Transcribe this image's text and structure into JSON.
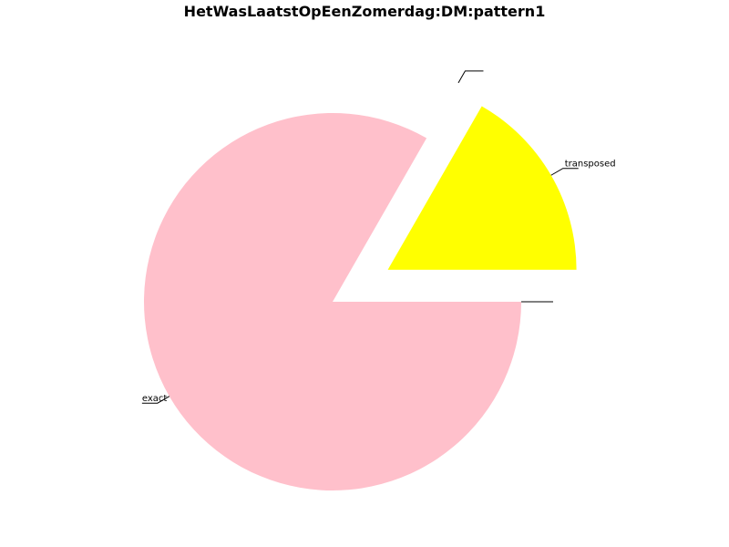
{
  "chart_data": {
    "type": "pie",
    "title": "HetWasLaatstOpEenZomerdag:DM:pattern1",
    "slices": [
      {
        "label": "transposed",
        "value": 16.7,
        "color": "#ffff00",
        "exploded": true
      },
      {
        "label": "",
        "value": 0,
        "color": "#ffffff",
        "exploded": true
      },
      {
        "label": "exact",
        "value": 83.3,
        "color": "#ffc0cb",
        "exploded": false
      },
      {
        "label": "",
        "value": 0,
        "color": "#ffffff",
        "exploded": false
      }
    ]
  }
}
